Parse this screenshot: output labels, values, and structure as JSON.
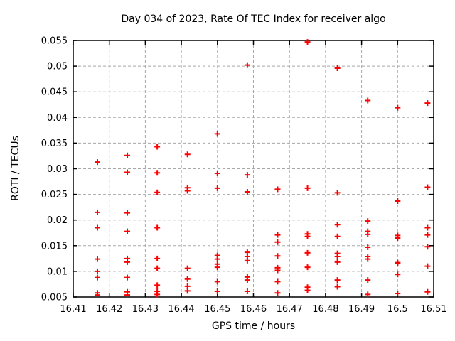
{
  "chart_data": {
    "type": "scatter",
    "title": "Day 034 of 2023, Rate Of TEC Index for receiver algo",
    "xlabel": "GPS time / hours",
    "ylabel": "ROTI / TECUs",
    "xlim": [
      16.41,
      16.51
    ],
    "ylim": [
      0.005,
      0.055
    ],
    "xtick_labels": [
      "16.41",
      "16.42",
      "16.43",
      "16.44",
      "16.45",
      "16.46",
      "16.47",
      "16.48",
      "16.49",
      "16.5",
      "16.51"
    ],
    "ytick_labels": [
      "0.005",
      "0.01",
      "0.015",
      "0.02",
      "0.025",
      "0.03",
      "0.035",
      "0.04",
      "0.045",
      "0.05",
      "0.055"
    ],
    "grid": true,
    "legend": "none",
    "marker": "plus",
    "colors": {
      "marker": "#ff0000",
      "grid": "#a8a8a8",
      "frame": "#000000",
      "text": "#000000",
      "background": "#ffffff"
    },
    "series": [
      {
        "name": "ROTI",
        "points": [
          [
            16.4167,
            0.0313
          ],
          [
            16.4167,
            0.0215
          ],
          [
            16.4167,
            0.0185
          ],
          [
            16.4167,
            0.0124
          ],
          [
            16.4167,
            0.01
          ],
          [
            16.4167,
            0.0088
          ],
          [
            16.4167,
            0.0058
          ],
          [
            16.4167,
            0.0054
          ],
          [
            16.425,
            0.0326
          ],
          [
            16.425,
            0.0293
          ],
          [
            16.425,
            0.0214
          ],
          [
            16.425,
            0.0178
          ],
          [
            16.425,
            0.0125
          ],
          [
            16.425,
            0.0118
          ],
          [
            16.425,
            0.0088
          ],
          [
            16.425,
            0.006
          ],
          [
            16.425,
            0.0054
          ],
          [
            16.4333,
            0.0343
          ],
          [
            16.4333,
            0.0292
          ],
          [
            16.4333,
            0.0254
          ],
          [
            16.4333,
            0.0185
          ],
          [
            16.4333,
            0.0125
          ],
          [
            16.4333,
            0.0106
          ],
          [
            16.4333,
            0.0073
          ],
          [
            16.4333,
            0.0061
          ],
          [
            16.4333,
            0.0055
          ],
          [
            16.4417,
            0.0328
          ],
          [
            16.4417,
            0.0263
          ],
          [
            16.4417,
            0.0257
          ],
          [
            16.4417,
            0.0106
          ],
          [
            16.4417,
            0.0085
          ],
          [
            16.4417,
            0.0071
          ],
          [
            16.4417,
            0.0062
          ],
          [
            16.45,
            0.0368
          ],
          [
            16.45,
            0.0291
          ],
          [
            16.45,
            0.0262
          ],
          [
            16.45,
            0.0131
          ],
          [
            16.45,
            0.0124
          ],
          [
            16.45,
            0.0114
          ],
          [
            16.45,
            0.0108
          ],
          [
            16.45,
            0.008
          ],
          [
            16.45,
            0.0061
          ],
          [
            16.4583,
            0.0502
          ],
          [
            16.4583,
            0.0288
          ],
          [
            16.4583,
            0.0255
          ],
          [
            16.4583,
            0.0137
          ],
          [
            16.4583,
            0.0129
          ],
          [
            16.4583,
            0.0121
          ],
          [
            16.4583,
            0.0089
          ],
          [
            16.4583,
            0.0083
          ],
          [
            16.4583,
            0.0061
          ],
          [
            16.4667,
            0.026
          ],
          [
            16.4667,
            0.0171
          ],
          [
            16.4667,
            0.0157
          ],
          [
            16.4667,
            0.013
          ],
          [
            16.4667,
            0.0107
          ],
          [
            16.4667,
            0.0102
          ],
          [
            16.4667,
            0.008
          ],
          [
            16.4667,
            0.0058
          ],
          [
            16.475,
            0.0547
          ],
          [
            16.475,
            0.0262
          ],
          [
            16.475,
            0.0173
          ],
          [
            16.475,
            0.0168
          ],
          [
            16.475,
            0.0136
          ],
          [
            16.475,
            0.0108
          ],
          [
            16.475,
            0.0069
          ],
          [
            16.475,
            0.0063
          ],
          [
            16.4833,
            0.0496
          ],
          [
            16.4833,
            0.0253
          ],
          [
            16.4833,
            0.0191
          ],
          [
            16.4833,
            0.0168
          ],
          [
            16.4833,
            0.0135
          ],
          [
            16.4833,
            0.0129
          ],
          [
            16.4833,
            0.0118
          ],
          [
            16.4833,
            0.0083
          ],
          [
            16.4833,
            0.007
          ],
          [
            16.4917,
            0.0433
          ],
          [
            16.4917,
            0.0198
          ],
          [
            16.4917,
            0.0178
          ],
          [
            16.4917,
            0.0172
          ],
          [
            16.4917,
            0.0147
          ],
          [
            16.4917,
            0.0129
          ],
          [
            16.4917,
            0.0124
          ],
          [
            16.4917,
            0.0083
          ],
          [
            16.4917,
            0.0055
          ],
          [
            16.5,
            0.0419
          ],
          [
            16.5,
            0.0237
          ],
          [
            16.5,
            0.017
          ],
          [
            16.5,
            0.0165
          ],
          [
            16.5,
            0.0117
          ],
          [
            16.5,
            0.0116
          ],
          [
            16.5,
            0.0094
          ],
          [
            16.5,
            0.0057
          ],
          [
            16.5083,
            0.0428
          ],
          [
            16.5083,
            0.0264
          ],
          [
            16.5083,
            0.0185
          ],
          [
            16.5083,
            0.0171
          ],
          [
            16.5083,
            0.0148
          ],
          [
            16.5083,
            0.011
          ],
          [
            16.5083,
            0.006
          ]
        ]
      }
    ]
  }
}
